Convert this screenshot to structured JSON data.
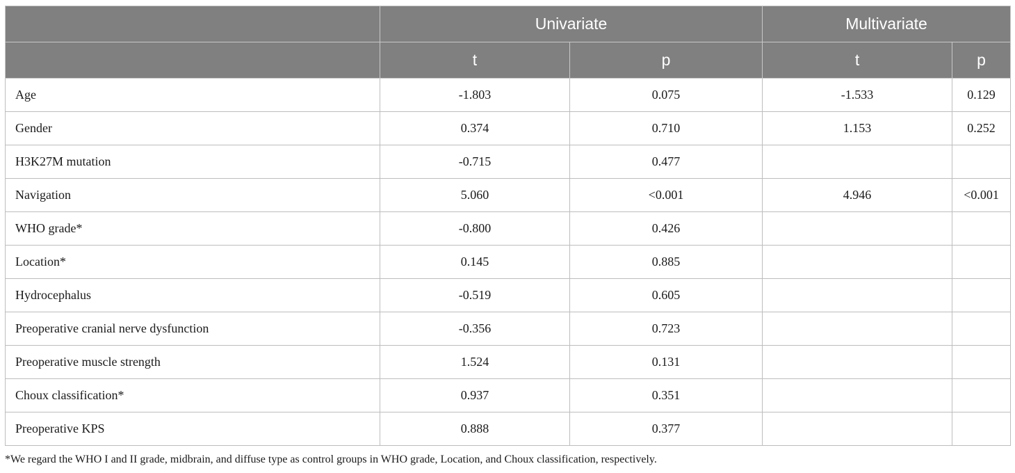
{
  "header": {
    "group_row": [
      "",
      "Univariate",
      "Multivariate"
    ],
    "sub_row": [
      "",
      "t",
      "p",
      "t",
      "p"
    ]
  },
  "rows": [
    {
      "label": "Age",
      "uni_t": "-1.803",
      "uni_p": "0.075",
      "multi_t": "-1.533",
      "multi_p": "0.129"
    },
    {
      "label": "Gender",
      "uni_t": "0.374",
      "uni_p": "0.710",
      "multi_t": "1.153",
      "multi_p": "0.252"
    },
    {
      "label": "H3K27M mutation",
      "uni_t": "-0.715",
      "uni_p": "0.477",
      "multi_t": "",
      "multi_p": ""
    },
    {
      "label": "Navigation",
      "uni_t": "5.060",
      "uni_p": "<0.001",
      "multi_t": "4.946",
      "multi_p": "<0.001"
    },
    {
      "label": "WHO grade*",
      "uni_t": "-0.800",
      "uni_p": "0.426",
      "multi_t": "",
      "multi_p": ""
    },
    {
      "label": "Location*",
      "uni_t": "0.145",
      "uni_p": "0.885",
      "multi_t": "",
      "multi_p": ""
    },
    {
      "label": "Hydrocephalus",
      "uni_t": "-0.519",
      "uni_p": "0.605",
      "multi_t": "",
      "multi_p": ""
    },
    {
      "label": "Preoperative cranial nerve dysfunction",
      "uni_t": "-0.356",
      "uni_p": "0.723",
      "multi_t": "",
      "multi_p": ""
    },
    {
      "label": "Preoperative muscle strength",
      "uni_t": "1.524",
      "uni_p": "0.131",
      "multi_t": "",
      "multi_p": ""
    },
    {
      "label": "Choux classification*",
      "uni_t": "0.937",
      "uni_p": "0.351",
      "multi_t": "",
      "multi_p": ""
    },
    {
      "label": "Preoperative KPS",
      "uni_t": "0.888",
      "uni_p": "0.377",
      "multi_t": "",
      "multi_p": ""
    }
  ],
  "footnote": "*We regard the WHO I and II grade, midbrain, and diffuse type as control groups in WHO grade, Location, and Choux classification, respectively.",
  "colors": {
    "header_bg": "#808080",
    "header_text": "#ffffff",
    "border": "#bdbdbd"
  }
}
